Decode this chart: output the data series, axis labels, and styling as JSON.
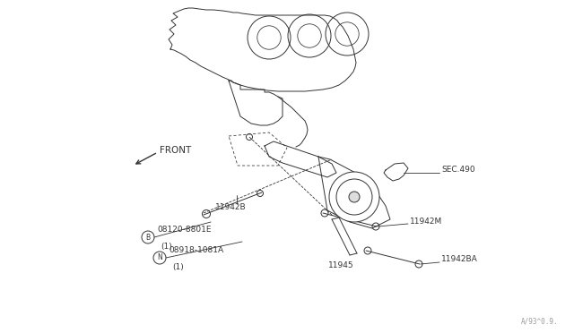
{
  "bg_color": "#ffffff",
  "line_color": "#333333",
  "label_color": "#333333",
  "watermark_color": "#999999",
  "watermark": "A/93^0.9.",
  "font_size_labels": 6.5,
  "font_size_watermark": 5.5,
  "labels": {
    "front": "FRONT",
    "sec490": "SEC.490",
    "l11942B": "11942B",
    "l11942M": "11942M",
    "l11942BA": "11942BA",
    "l11945": "11945",
    "bolt_id": "08120-8801E",
    "bolt_qty": "(1)",
    "nut_id": "08918-1081A",
    "nut_qty": "(1)"
  }
}
